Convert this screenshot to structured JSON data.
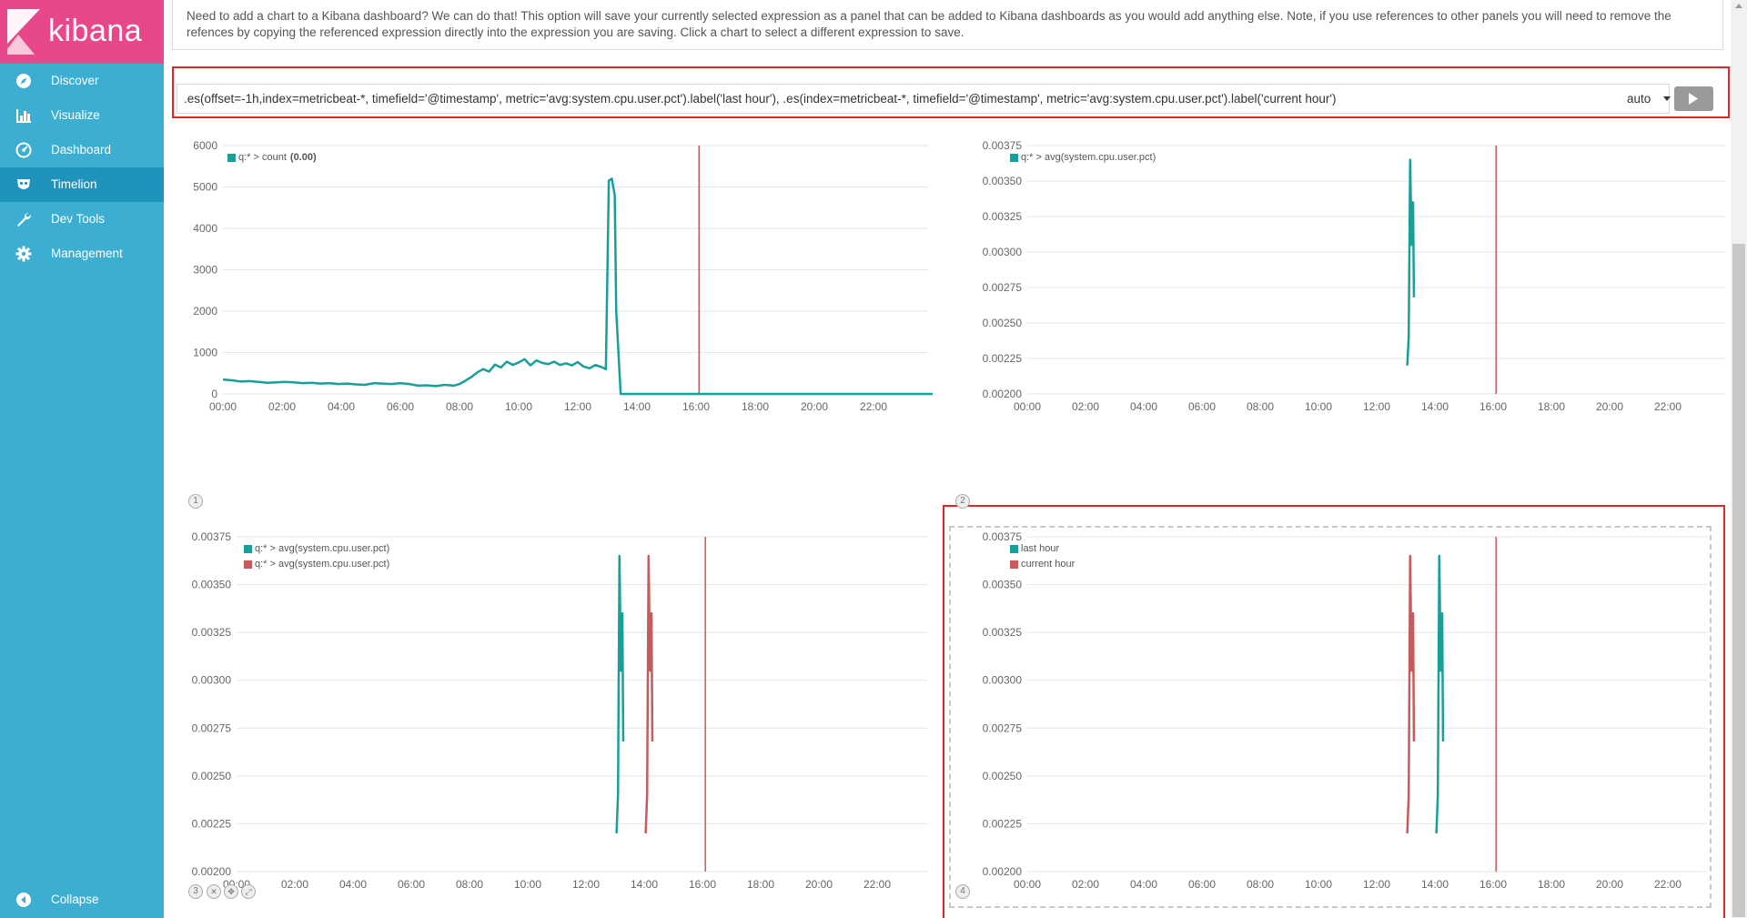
{
  "app": {
    "name": "kibana"
  },
  "sidebar": {
    "items": [
      {
        "label": "Discover",
        "icon": "compass-icon"
      },
      {
        "label": "Visualize",
        "icon": "bar-chart-icon"
      },
      {
        "label": "Dashboard",
        "icon": "dashboard-gauge-icon"
      },
      {
        "label": "Timelion",
        "icon": "timelion-mask-icon",
        "active": true
      },
      {
        "label": "Dev Tools",
        "icon": "wrench-icon"
      },
      {
        "label": "Management",
        "icon": "gear-icon"
      }
    ],
    "collapse_label": "Collapse"
  },
  "info": {
    "text": "Need to add a chart to a Kibana dashboard? We can do that! This option will save your currently selected expression as a panel that can be added to Kibana dashboards as you would add anything else. Note, if you use references to other panels you will need to remove the refences by copying the referenced expression directly into the expression you are saving. Click a chart to select a different expression to save."
  },
  "expression": {
    "value": ".es(offset=-1h,index=metricbeat-*, timefield='@timestamp', metric='avg:system.cpu.user.pct').label('last hour'), .es(index=metricbeat-*, timefield='@timestamp', metric='avg:system.cpu.user.pct').label('current hour')",
    "interval": "auto"
  },
  "colors": {
    "teal": "#199f9a",
    "red": "#c65b5b",
    "accent_border": "#e5242a",
    "sidebar": "#3caed2",
    "logo_bg": "#e8488b"
  },
  "panels": [
    {
      "number": "1",
      "legend": [
        {
          "label": "q:* > count",
          "value": "(0.00)",
          "color": "#199f9a"
        }
      ]
    },
    {
      "number": "2",
      "legend": [
        {
          "label": "q:* > avg(system.cpu.user.pct)",
          "color": "#199f9a"
        }
      ]
    },
    {
      "number": "3",
      "legend": [
        {
          "label": "q:* > avg(system.cpu.user.pct)",
          "color": "#199f9a"
        },
        {
          "label": "q:* > avg(system.cpu.user.pct)",
          "color": "#c65b5b"
        }
      ],
      "tools": [
        "remove",
        "drag",
        "resize"
      ]
    },
    {
      "number": "4",
      "legend": [
        {
          "label": "last hour",
          "color": "#199f9a"
        },
        {
          "label": "current hour",
          "color": "#c65b5b"
        }
      ]
    }
  ],
  "chart_data": [
    {
      "type": "line",
      "panel": 1,
      "xticks": [
        "00:00",
        "02:00",
        "04:00",
        "06:00",
        "08:00",
        "10:00",
        "12:00",
        "14:00",
        "16:00",
        "18:00",
        "20:00",
        "22:00"
      ],
      "yticks": [
        "0",
        "1000",
        "2000",
        "3000",
        "4000",
        "5000",
        "6000"
      ],
      "ylim": [
        0,
        6000
      ],
      "xlim_hours": [
        0,
        24
      ],
      "marker_hour": 16.1,
      "series": [
        {
          "name": "q:* > count",
          "color": "#199f9a",
          "x": [
            0,
            0.3,
            0.6,
            0.9,
            1.2,
            1.5,
            1.8,
            2.1,
            2.4,
            2.7,
            3.0,
            3.3,
            3.6,
            3.9,
            4.2,
            4.5,
            4.8,
            5.1,
            5.4,
            5.7,
            6.0,
            6.3,
            6.6,
            6.9,
            7.2,
            7.5,
            7.8,
            8.0,
            8.2,
            8.4,
            8.6,
            8.8,
            9.0,
            9.2,
            9.4,
            9.6,
            9.8,
            10.0,
            10.2,
            10.4,
            10.6,
            10.8,
            11.0,
            11.2,
            11.4,
            11.6,
            11.8,
            12.0,
            12.2,
            12.4,
            12.6,
            12.8,
            12.95,
            13.05,
            13.15,
            13.25,
            13.3,
            13.45,
            14,
            15,
            16,
            17,
            18,
            19,
            20,
            21,
            22,
            23,
            24
          ],
          "y": [
            350,
            330,
            300,
            310,
            290,
            270,
            280,
            290,
            280,
            260,
            270,
            250,
            260,
            240,
            250,
            230,
            220,
            260,
            250,
            240,
            260,
            240,
            200,
            210,
            190,
            220,
            200,
            240,
            320,
            410,
            520,
            600,
            540,
            710,
            640,
            780,
            700,
            760,
            840,
            690,
            810,
            750,
            720,
            780,
            700,
            740,
            690,
            770,
            660,
            620,
            700,
            650,
            600,
            5150,
            5200,
            4800,
            2000,
            0,
            0,
            0,
            0,
            0,
            0,
            0,
            0,
            0,
            0,
            0,
            0
          ]
        }
      ]
    },
    {
      "type": "line",
      "panel": 2,
      "xticks": [
        "00:00",
        "02:00",
        "04:00",
        "06:00",
        "08:00",
        "10:00",
        "12:00",
        "14:00",
        "16:00",
        "18:00",
        "20:00",
        "22:00"
      ],
      "yticks": [
        "0.00200",
        "0.00225",
        "0.00250",
        "0.00275",
        "0.00300",
        "0.00325",
        "0.00350",
        "0.00375"
      ],
      "ylim": [
        0.002,
        0.00375
      ],
      "marker_hour": 16.1,
      "series": [
        {
          "name": "q:* > avg(system.cpu.user.pct)",
          "color": "#199f9a",
          "x": [
            13.05,
            13.1,
            13.15,
            13.2,
            13.25,
            13.28
          ],
          "y": [
            0.0022,
            0.0024,
            0.00365,
            0.00305,
            0.00335,
            0.00268
          ]
        }
      ]
    },
    {
      "type": "line",
      "panel": 3,
      "xticks": [
        "00:00",
        "02:00",
        "04:00",
        "06:00",
        "08:00",
        "10:00",
        "12:00",
        "14:00",
        "16:00",
        "18:00",
        "20:00",
        "22:00"
      ],
      "yticks": [
        "0.00200",
        "0.00225",
        "0.00250",
        "0.00275",
        "0.00300",
        "0.00325",
        "0.00350",
        "0.00375"
      ],
      "ylim": [
        0.002,
        0.00375
      ],
      "marker_hour": 16.1,
      "series": [
        {
          "name": "q:* > avg(system.cpu.user.pct)",
          "color": "#199f9a",
          "x": [
            13.05,
            13.1,
            13.15,
            13.2,
            13.25,
            13.28
          ],
          "y": [
            0.0022,
            0.0024,
            0.00365,
            0.00305,
            0.00335,
            0.00268
          ]
        },
        {
          "name": "q:* > avg(system.cpu.user.pct)",
          "color": "#c65b5b",
          "x": [
            14.05,
            14.1,
            14.15,
            14.2,
            14.25,
            14.28
          ],
          "y": [
            0.0022,
            0.0024,
            0.00365,
            0.00305,
            0.00335,
            0.00268
          ]
        }
      ]
    },
    {
      "type": "line",
      "panel": 4,
      "xticks": [
        "00:00",
        "02:00",
        "04:00",
        "06:00",
        "08:00",
        "10:00",
        "12:00",
        "14:00",
        "16:00",
        "18:00",
        "20:00",
        "22:00"
      ],
      "yticks": [
        "0.00200",
        "0.00225",
        "0.00250",
        "0.00275",
        "0.00300",
        "0.00325",
        "0.00350",
        "0.00375"
      ],
      "ylim": [
        0.002,
        0.00375
      ],
      "marker_hour": 16.1,
      "series": [
        {
          "name": "last hour",
          "color": "#199f9a",
          "x": [
            14.05,
            14.1,
            14.15,
            14.2,
            14.25,
            14.28
          ],
          "y": [
            0.0022,
            0.0024,
            0.00365,
            0.00305,
            0.00335,
            0.00268
          ]
        },
        {
          "name": "current hour",
          "color": "#c65b5b",
          "x": [
            13.05,
            13.1,
            13.15,
            13.2,
            13.25,
            13.28
          ],
          "y": [
            0.0022,
            0.0024,
            0.00365,
            0.00305,
            0.00335,
            0.00268
          ]
        }
      ]
    }
  ]
}
